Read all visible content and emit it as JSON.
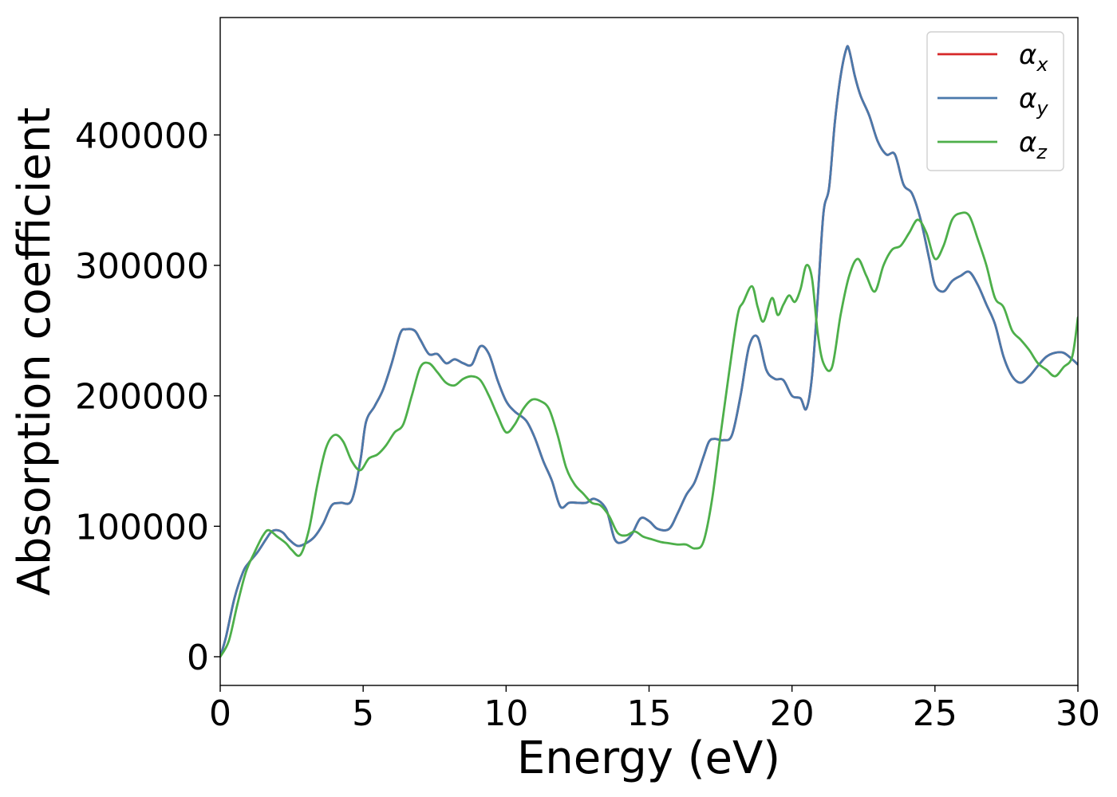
{
  "chart_data": {
    "type": "line",
    "title": "",
    "xlabel": "Energy (eV)",
    "ylabel": "Absorption coefficient",
    "xlim": [
      0,
      30
    ],
    "ylim": [
      -22000,
      490000
    ],
    "xticks": [
      0,
      5,
      10,
      15,
      20,
      25,
      30
    ],
    "yticks": [
      0,
      100000,
      200000,
      300000,
      400000
    ],
    "grid": false,
    "legend_position": "top-right",
    "series": [
      {
        "name": "αx",
        "name_base": "α",
        "name_sub": "x",
        "color": "#d62728",
        "x": [
          0,
          0.2,
          0.5,
          0.8,
          1.0,
          1.3,
          1.6,
          1.8,
          2.0,
          2.2,
          2.4,
          2.7,
          3.0,
          3.3,
          3.6,
          3.9,
          4.2,
          4.6,
          4.9,
          5.1,
          5.4,
          5.7,
          6.0,
          6.3,
          6.5,
          6.8,
          7.0,
          7.3,
          7.6,
          7.9,
          8.2,
          8.5,
          8.8,
          9.1,
          9.4,
          9.7,
          10.0,
          10.3,
          10.7,
          11.0,
          11.3,
          11.6,
          11.9,
          12.2,
          12.5,
          12.8,
          13.1,
          13.5,
          13.8,
          14.1,
          14.4,
          14.7,
          15.0,
          15.3,
          15.7,
          16.0,
          16.3,
          16.6,
          16.9,
          17.1,
          17.3,
          17.6,
          17.9,
          18.2,
          18.5,
          18.8,
          19.1,
          19.4,
          19.7,
          20.0,
          20.3,
          20.5,
          20.7,
          20.9,
          21.1,
          21.3,
          21.5,
          21.7,
          21.9,
          22.0,
          22.2,
          22.4,
          22.7,
          23.0,
          23.3,
          23.6,
          23.9,
          24.2,
          24.5,
          24.8,
          25.0,
          25.3,
          25.6,
          25.9,
          26.2,
          26.5,
          26.8,
          27.1,
          27.4,
          27.7,
          28.0,
          28.3,
          28.6,
          28.9,
          29.2,
          29.5,
          29.8,
          30.0
        ],
        "y": [
          0,
          15000,
          45000,
          65000,
          72000,
          80000,
          90000,
          96000,
          97000,
          95000,
          90000,
          85000,
          87000,
          92000,
          102000,
          116000,
          118000,
          120000,
          150000,
          180000,
          192000,
          205000,
          225000,
          248000,
          251000,
          250000,
          243000,
          232000,
          232000,
          225000,
          228000,
          225000,
          224000,
          238000,
          232000,
          212000,
          196000,
          188000,
          181000,
          168000,
          150000,
          135000,
          115000,
          118000,
          118000,
          118000,
          121000,
          113000,
          90000,
          88000,
          94000,
          106000,
          104000,
          98000,
          98000,
          110000,
          124000,
          134000,
          153000,
          165000,
          167000,
          166000,
          170000,
          200000,
          238000,
          245000,
          220000,
          213000,
          212000,
          200000,
          198000,
          190000,
          215000,
          275000,
          340000,
          360000,
          410000,
          445000,
          466000,
          465000,
          445000,
          430000,
          415000,
          395000,
          385000,
          385000,
          362000,
          355000,
          335000,
          305000,
          285000,
          280000,
          288000,
          292000,
          295000,
          285000,
          270000,
          255000,
          230000,
          215000,
          210000,
          215000,
          223000,
          230000,
          233000,
          233000,
          228000,
          224000
        ]
      },
      {
        "name": "αy",
        "name_base": "α",
        "name_sub": "y",
        "color": "#4a79ab",
        "x": [
          0,
          0.2,
          0.5,
          0.8,
          1.0,
          1.3,
          1.6,
          1.8,
          2.0,
          2.2,
          2.4,
          2.7,
          3.0,
          3.3,
          3.6,
          3.9,
          4.2,
          4.6,
          4.9,
          5.1,
          5.4,
          5.7,
          6.0,
          6.3,
          6.5,
          6.8,
          7.0,
          7.3,
          7.6,
          7.9,
          8.2,
          8.5,
          8.8,
          9.1,
          9.4,
          9.7,
          10.0,
          10.3,
          10.7,
          11.0,
          11.3,
          11.6,
          11.9,
          12.2,
          12.5,
          12.8,
          13.1,
          13.5,
          13.8,
          14.1,
          14.4,
          14.7,
          15.0,
          15.3,
          15.7,
          16.0,
          16.3,
          16.6,
          16.9,
          17.1,
          17.3,
          17.6,
          17.9,
          18.2,
          18.5,
          18.8,
          19.1,
          19.4,
          19.7,
          20.0,
          20.3,
          20.5,
          20.7,
          20.9,
          21.1,
          21.3,
          21.5,
          21.7,
          21.9,
          22.0,
          22.2,
          22.4,
          22.7,
          23.0,
          23.3,
          23.6,
          23.9,
          24.2,
          24.5,
          24.8,
          25.0,
          25.3,
          25.6,
          25.9,
          26.2,
          26.5,
          26.8,
          27.1,
          27.4,
          27.7,
          28.0,
          28.3,
          28.6,
          28.9,
          29.2,
          29.5,
          29.8,
          30.0
        ],
        "y": [
          0,
          15000,
          45000,
          65000,
          72000,
          80000,
          90000,
          96000,
          97000,
          95000,
          90000,
          85000,
          87000,
          92000,
          102000,
          116000,
          118000,
          120000,
          150000,
          180000,
          192000,
          205000,
          225000,
          248000,
          251000,
          250000,
          243000,
          232000,
          232000,
          225000,
          228000,
          225000,
          224000,
          238000,
          232000,
          212000,
          196000,
          188000,
          181000,
          168000,
          150000,
          135000,
          115000,
          118000,
          118000,
          118000,
          121000,
          113000,
          90000,
          88000,
          94000,
          106000,
          104000,
          98000,
          98000,
          110000,
          124000,
          134000,
          153000,
          165000,
          167000,
          166000,
          170000,
          200000,
          238000,
          245000,
          220000,
          213000,
          212000,
          200000,
          198000,
          190000,
          215000,
          275000,
          340000,
          360000,
          410000,
          445000,
          466000,
          465000,
          445000,
          430000,
          415000,
          395000,
          385000,
          385000,
          362000,
          355000,
          335000,
          305000,
          285000,
          280000,
          288000,
          292000,
          295000,
          285000,
          270000,
          255000,
          230000,
          215000,
          210000,
          215000,
          223000,
          230000,
          233000,
          233000,
          228000,
          224000
        ]
      },
      {
        "name": "αz",
        "name_base": "α",
        "name_sub": "z",
        "color": "#4daf4a",
        "x": [
          0,
          0.3,
          0.6,
          0.9,
          1.2,
          1.5,
          1.7,
          2.0,
          2.3,
          2.5,
          2.8,
          3.1,
          3.4,
          3.7,
          4.0,
          4.3,
          4.6,
          4.9,
          5.2,
          5.5,
          5.8,
          6.1,
          6.4,
          6.7,
          7.0,
          7.3,
          7.6,
          7.9,
          8.2,
          8.5,
          8.8,
          9.1,
          9.4,
          9.7,
          10.0,
          10.3,
          10.6,
          10.9,
          11.2,
          11.5,
          11.8,
          12.1,
          12.4,
          12.7,
          13.0,
          13.3,
          13.6,
          13.9,
          14.2,
          14.5,
          14.8,
          15.1,
          15.4,
          15.7,
          16.0,
          16.3,
          16.6,
          16.9,
          17.2,
          17.5,
          17.8,
          18.1,
          18.3,
          18.6,
          18.8,
          19.0,
          19.3,
          19.5,
          19.7,
          19.9,
          20.1,
          20.3,
          20.5,
          20.7,
          20.9,
          21.1,
          21.4,
          21.7,
          22.0,
          22.3,
          22.6,
          22.9,
          23.2,
          23.5,
          23.8,
          24.1,
          24.4,
          24.7,
          25.0,
          25.3,
          25.6,
          25.9,
          26.2,
          26.5,
          26.8,
          27.1,
          27.4,
          27.7,
          28.0,
          28.3,
          28.6,
          28.9,
          29.2,
          29.5,
          29.8,
          30.0
        ],
        "y": [
          0,
          12000,
          40000,
          65000,
          80000,
          93000,
          97000,
          92000,
          87000,
          82000,
          78000,
          97000,
          132000,
          160000,
          170000,
          165000,
          150000,
          143000,
          152000,
          155000,
          162000,
          172000,
          178000,
          200000,
          222000,
          225000,
          218000,
          210000,
          208000,
          213000,
          215000,
          212000,
          200000,
          185000,
          172000,
          178000,
          190000,
          197000,
          196000,
          190000,
          170000,
          145000,
          132000,
          125000,
          118000,
          116000,
          108000,
          95000,
          93000,
          96000,
          92000,
          90000,
          88000,
          87000,
          86000,
          86000,
          83000,
          88000,
          120000,
          170000,
          218000,
          262000,
          272000,
          284000,
          268000,
          257000,
          275000,
          262000,
          270000,
          277000,
          272000,
          282000,
          300000,
          290000,
          248000,
          225000,
          222000,
          262000,
          292000,
          305000,
          292000,
          280000,
          300000,
          312000,
          315000,
          325000,
          335000,
          325000,
          305000,
          315000,
          335000,
          340000,
          338000,
          320000,
          300000,
          275000,
          268000,
          250000,
          243000,
          235000,
          225000,
          220000,
          215000,
          222000,
          230000,
          260000
        ]
      }
    ]
  }
}
